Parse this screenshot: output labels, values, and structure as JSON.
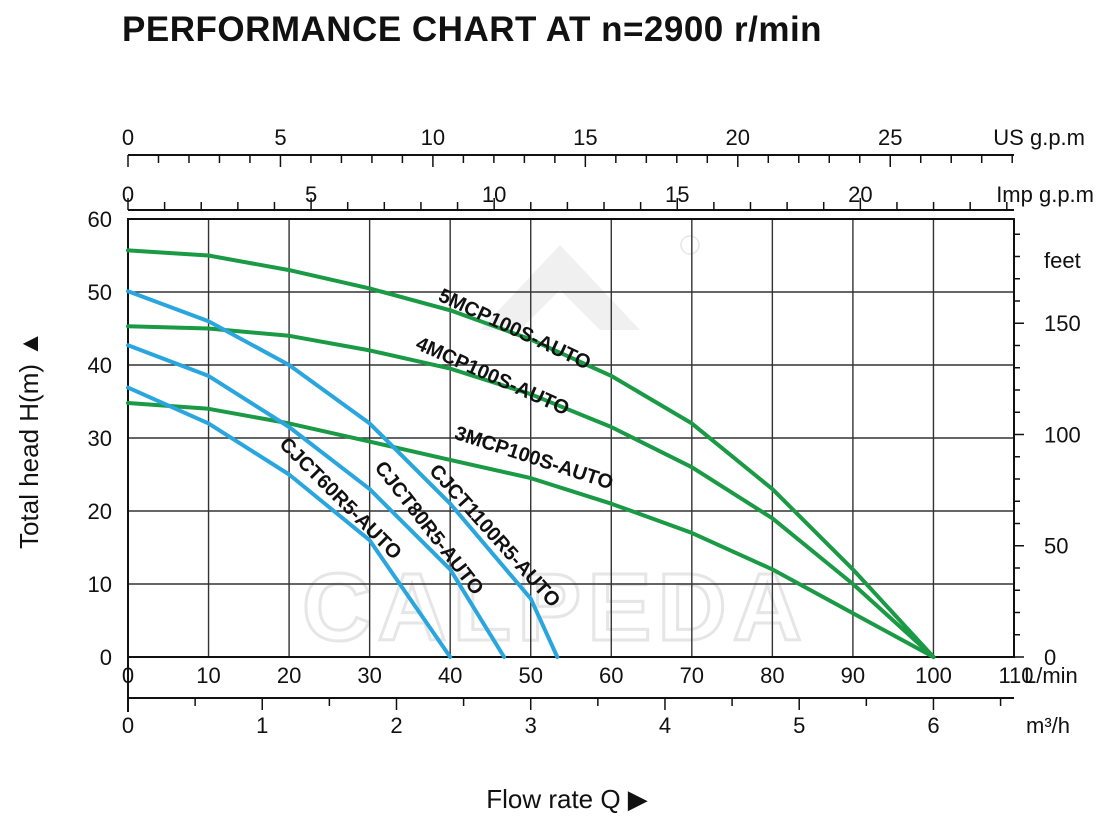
{
  "chart_title": "PERFORMANCE CHART AT n=2900 r/min",
  "colors": {
    "green": "#1a9a44",
    "blue": "#2aa6de",
    "grid": "#333333",
    "watermark": "#e6e6e6"
  },
  "chart_data": {
    "type": "line",
    "title": "PERFORMANCE CHART AT n=2900 r/min",
    "xlabel": "Flow rate  Q",
    "ylabel": "Total  head H(m)",
    "xlim": [
      0,
      110
    ],
    "ylim": [
      0,
      60
    ],
    "grid": true,
    "x_unit": "L/min",
    "xticks": [
      "0",
      "10",
      "20",
      "30",
      "40",
      "50",
      "60",
      "70",
      "80",
      "90",
      "100",
      "110"
    ],
    "yticks": [
      "0",
      "10",
      "20",
      "30",
      "40",
      "50",
      "60"
    ],
    "secondary_axes": {
      "us_gpm": {
        "unit": "US g.p.m",
        "labels": [
          "0",
          "5",
          "10",
          "15",
          "20",
          "25"
        ]
      },
      "imp_gpm": {
        "unit": "Imp g.p.m",
        "labels": [
          "0",
          "5",
          "10",
          "15",
          "20"
        ]
      },
      "feet": {
        "unit": "feet",
        "labels": [
          "0",
          "50",
          "100",
          "150"
        ]
      },
      "m3h": {
        "unit": "m³/h",
        "labels": [
          "0",
          "1",
          "2",
          "3",
          "4",
          "5",
          "6"
        ]
      }
    },
    "series": [
      {
        "name": "5MCP100S-AUTO",
        "color": "#1a9a44",
        "points": [
          [
            0,
            55.7
          ],
          [
            10,
            55
          ],
          [
            20,
            53
          ],
          [
            30,
            50.5
          ],
          [
            40,
            47.5
          ],
          [
            50,
            43.5
          ],
          [
            60,
            38.5
          ],
          [
            70,
            32
          ],
          [
            80,
            23
          ],
          [
            90,
            12
          ],
          [
            100,
            0
          ]
        ]
      },
      {
        "name": "4MCP100S-AUTO",
        "color": "#1a9a44",
        "points": [
          [
            0,
            45.3
          ],
          [
            10,
            45
          ],
          [
            20,
            44
          ],
          [
            30,
            42
          ],
          [
            40,
            39.5
          ],
          [
            50,
            36
          ],
          [
            60,
            31.5
          ],
          [
            70,
            26
          ],
          [
            80,
            19
          ],
          [
            90,
            10
          ],
          [
            100,
            0
          ]
        ]
      },
      {
        "name": "3MCP100S-AUTO",
        "color": "#1a9a44",
        "points": [
          [
            0,
            34.8
          ],
          [
            10,
            34
          ],
          [
            20,
            32
          ],
          [
            30,
            29.5
          ],
          [
            40,
            27
          ],
          [
            50,
            24.5
          ],
          [
            60,
            21
          ],
          [
            70,
            17
          ],
          [
            80,
            12
          ],
          [
            90,
            6
          ],
          [
            100,
            0
          ]
        ]
      },
      {
        "name": "CJCT1100R5-AUTO",
        "color": "#2aa6de",
        "points": [
          [
            0,
            50.1
          ],
          [
            10,
            46
          ],
          [
            20,
            40
          ],
          [
            30,
            32
          ],
          [
            40,
            21
          ],
          [
            50,
            8
          ],
          [
            53.3,
            0
          ]
        ]
      },
      {
        "name": "CJCT80R5-AUTO",
        "color": "#2aa6de",
        "points": [
          [
            0,
            42.7
          ],
          [
            10,
            38.5
          ],
          [
            20,
            31.5
          ],
          [
            30,
            23
          ],
          [
            40,
            12
          ],
          [
            46.7,
            0
          ]
        ]
      },
      {
        "name": "CJCT60R5-AUTO",
        "color": "#2aa6de",
        "points": [
          [
            0,
            36.9
          ],
          [
            10,
            32
          ],
          [
            20,
            25
          ],
          [
            30,
            16
          ],
          [
            40,
            0
          ]
        ]
      }
    ]
  },
  "watermark_text": "CALPEDA"
}
